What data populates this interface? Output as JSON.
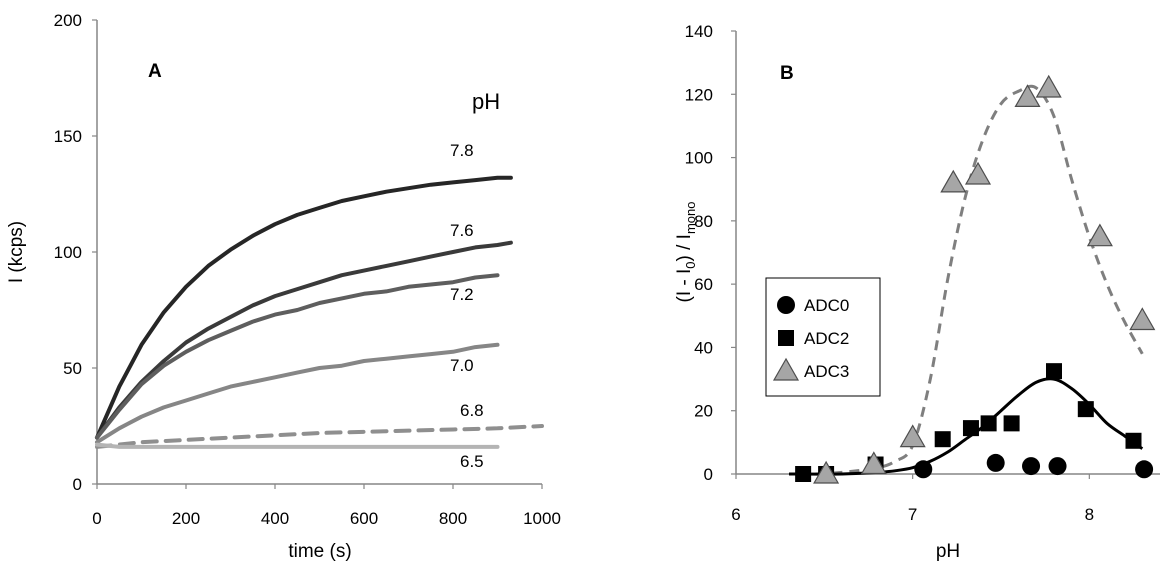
{
  "chart_data": [
    {
      "type": "line",
      "panel_label": "A",
      "xlabel": "time (s)",
      "ylabel": "I (kcps)",
      "xlim": [
        0,
        1000
      ],
      "ylim": [
        0,
        200
      ],
      "xticks": [
        0,
        200,
        400,
        600,
        800,
        1000
      ],
      "yticks": [
        0,
        50,
        100,
        150,
        200
      ],
      "legend_title": "pH",
      "grid": false,
      "series": [
        {
          "name": "7.8",
          "color": "#262626",
          "dashed": false,
          "x": [
            0,
            50,
            100,
            150,
            200,
            250,
            300,
            350,
            400,
            450,
            500,
            550,
            600,
            650,
            700,
            750,
            800,
            850,
            900,
            930
          ],
          "y": [
            20,
            42,
            60,
            74,
            85,
            94,
            101,
            107,
            112,
            116,
            119,
            122,
            124,
            126,
            127.5,
            129,
            130,
            131,
            132,
            132
          ]
        },
        {
          "name": "7.6",
          "color": "#3a3a3a",
          "dashed": false,
          "x": [
            0,
            50,
            100,
            150,
            200,
            250,
            300,
            350,
            400,
            450,
            500,
            550,
            600,
            650,
            700,
            750,
            800,
            850,
            900,
            930
          ],
          "y": [
            20,
            33,
            44,
            53,
            61,
            67,
            72,
            77,
            81,
            84,
            87,
            90,
            92,
            94,
            96,
            98,
            100,
            102,
            103,
            104
          ]
        },
        {
          "name": "7.2",
          "color": "#5e5e5e",
          "dashed": false,
          "x": [
            0,
            50,
            100,
            150,
            200,
            250,
            300,
            350,
            400,
            450,
            500,
            550,
            600,
            650,
            700,
            750,
            800,
            850,
            900
          ],
          "y": [
            20,
            32,
            43,
            51,
            57,
            62,
            66,
            70,
            73,
            75,
            78,
            80,
            82,
            83,
            85,
            86,
            87,
            89,
            90
          ]
        },
        {
          "name": "7.0",
          "color": "#868686",
          "dashed": false,
          "x": [
            0,
            50,
            100,
            150,
            200,
            250,
            300,
            350,
            400,
            450,
            500,
            550,
            600,
            650,
            700,
            750,
            800,
            850,
            900
          ],
          "y": [
            18,
            24,
            29,
            33,
            36,
            39,
            42,
            44,
            46,
            48,
            50,
            51,
            53,
            54,
            55,
            56,
            57,
            59,
            60
          ]
        },
        {
          "name": "6.8",
          "color": "#8f8f8f",
          "dashed": true,
          "x": [
            0,
            50,
            100,
            200,
            300,
            400,
            500,
            600,
            700,
            800,
            900,
            1000
          ],
          "y": [
            16,
            17,
            18,
            19,
            20,
            21,
            22,
            22.5,
            23,
            23.5,
            24,
            25
          ]
        },
        {
          "name": "6.5",
          "color": "#b4b4b4",
          "dashed": false,
          "x": [
            0,
            50,
            100,
            200,
            300,
            400,
            500,
            600,
            700,
            800,
            900
          ],
          "y": [
            17,
            16,
            16,
            16,
            16,
            16,
            16,
            16,
            16,
            16,
            16
          ]
        }
      ]
    },
    {
      "type": "scatter",
      "panel_label": "B",
      "xlabel": "pH",
      "ylabel_main": "(I - I",
      "ylabel_sub0": "0",
      "ylabel_mid": ") / I",
      "ylabel_sub1": "mono",
      "xlim": [
        6,
        8.4
      ],
      "ylim": [
        0,
        140
      ],
      "xticks": [
        6,
        7,
        8
      ],
      "yticks": [
        0,
        20,
        40,
        60,
        80,
        100,
        120,
        140
      ],
      "legend_position": "center-left",
      "series": [
        {
          "name": "ADC0",
          "marker": "circle",
          "color": "#000000",
          "x": [
            7.06,
            7.47,
            7.67,
            7.82,
            8.31
          ],
          "y": [
            1.5,
            3.5,
            2.5,
            2.5,
            1.5
          ]
        },
        {
          "name": "ADC2",
          "marker": "square",
          "color": "#000000",
          "x": [
            6.38,
            6.51,
            6.79,
            7.17,
            7.33,
            7.43,
            7.56,
            7.8,
            7.98,
            8.25
          ],
          "y": [
            0,
            0,
            3,
            11,
            14.5,
            16,
            16,
            32.5,
            20.5,
            10.5
          ]
        },
        {
          "name": "ADC3",
          "marker": "triangle",
          "color": "#a6a6a6",
          "x": [
            6.51,
            6.78,
            7.0,
            7.23,
            7.37,
            7.65,
            7.77,
            8.06,
            8.3
          ],
          "y": [
            0,
            3,
            11.5,
            92,
            94.5,
            119,
            122,
            75,
            48.5
          ]
        }
      ],
      "fit_curves": [
        {
          "for": "ADC3",
          "style": "dashed",
          "color": "#7f7f7f",
          "x": [
            6.45,
            6.6,
            6.8,
            6.9,
            7.0,
            7.1,
            7.2,
            7.3,
            7.4,
            7.5,
            7.6,
            7.7,
            7.8,
            7.9,
            8.0,
            8.1,
            8.2,
            8.3
          ],
          "y": [
            0,
            0.5,
            2,
            4,
            9,
            30,
            62,
            88,
            106,
            117,
            121,
            122,
            113,
            93,
            75,
            60,
            48,
            38
          ]
        },
        {
          "for": "ADC2",
          "style": "solid",
          "color": "#000000",
          "x": [
            6.3,
            6.6,
            6.8,
            6.9,
            7.0,
            7.1,
            7.2,
            7.3,
            7.4,
            7.5,
            7.6,
            7.7,
            7.8,
            7.9,
            8.0,
            8.1,
            8.2,
            8.3
          ],
          "y": [
            0,
            0,
            0.5,
            1,
            2,
            4,
            7,
            11,
            15,
            20,
            25,
            29,
            30,
            27,
            22,
            16,
            12,
            8
          ]
        }
      ]
    }
  ]
}
